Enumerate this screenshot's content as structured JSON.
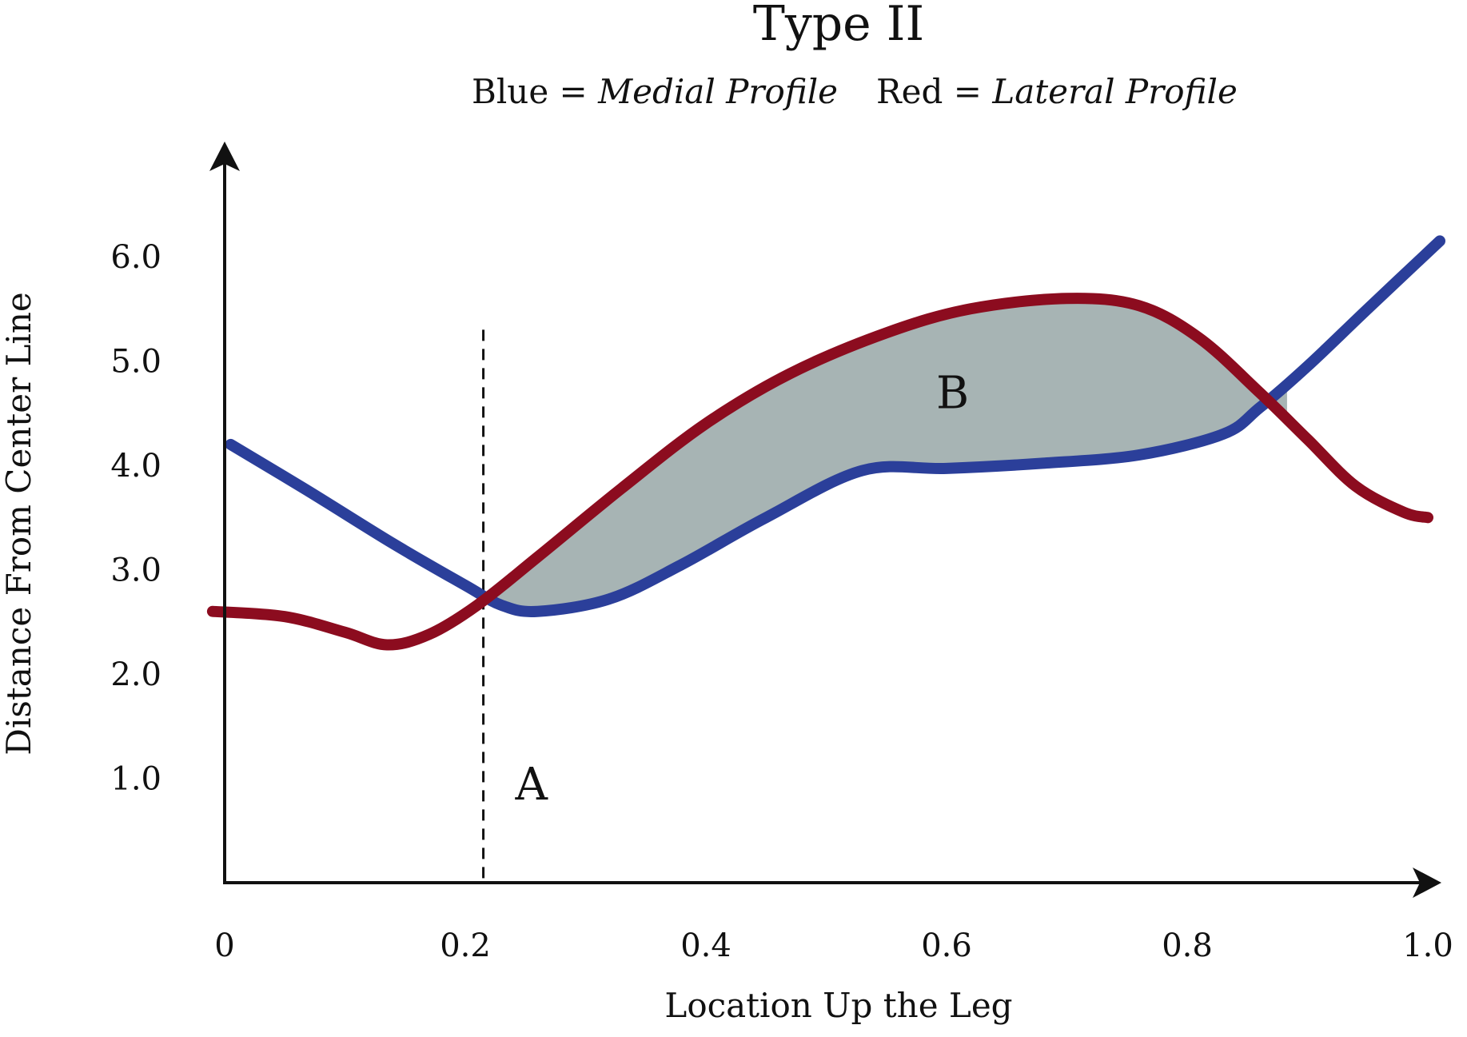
{
  "chart_data": {
    "type": "line",
    "title": "Type II",
    "legend": {
      "placement": "top-center",
      "entries": [
        {
          "prefix": "Blue = ",
          "name": "Medial Profile",
          "color": "#2b3f9a"
        },
        {
          "prefix": "Red = ",
          "name": "Lateral Profile",
          "color": "#8c0c1f"
        }
      ]
    },
    "xlabel": "Location Up the Leg",
    "ylabel": "Distance From Center Line",
    "xlim": [
      0,
      1.0
    ],
    "ylim": [
      0,
      6.0
    ],
    "x_ticks": [
      {
        "value": 0,
        "label": "0"
      },
      {
        "value": 0.2,
        "label": "0.2"
      },
      {
        "value": 0.4,
        "label": "0.4"
      },
      {
        "value": 0.6,
        "label": "0.6"
      },
      {
        "value": 0.8,
        "label": "0.8"
      },
      {
        "value": 1.0,
        "label": "1.0"
      }
    ],
    "y_ticks": [
      {
        "value": 1.0,
        "label": "1.0"
      },
      {
        "value": 2.0,
        "label": "2.0"
      },
      {
        "value": 3.0,
        "label": "3.0"
      },
      {
        "value": 4.0,
        "label": "4.0"
      },
      {
        "value": 5.0,
        "label": "5.0"
      },
      {
        "value": 6.0,
        "label": "6.0"
      }
    ],
    "grid": false,
    "series": [
      {
        "name": "Medial Profile",
        "color": "#2b3f9a",
        "x": [
          0.005,
          0.07,
          0.14,
          0.2,
          0.23,
          0.26,
          0.32,
          0.38,
          0.45,
          0.53,
          0.6,
          0.68,
          0.76,
          0.83,
          0.86,
          0.9,
          0.95,
          1.01
        ],
        "y": [
          4.2,
          3.75,
          3.25,
          2.85,
          2.66,
          2.6,
          2.72,
          3.05,
          3.5,
          3.95,
          3.97,
          4.02,
          4.1,
          4.3,
          4.55,
          4.95,
          5.5,
          6.15
        ]
      },
      {
        "name": "Lateral Profile",
        "color": "#8c0c1f",
        "x": [
          -0.01,
          0.05,
          0.1,
          0.135,
          0.17,
          0.21,
          0.26,
          0.33,
          0.4,
          0.47,
          0.55,
          0.62,
          0.7,
          0.76,
          0.81,
          0.86,
          0.9,
          0.94,
          0.98,
          1.0
        ],
        "y": [
          2.6,
          2.55,
          2.4,
          2.28,
          2.38,
          2.66,
          3.12,
          3.78,
          4.4,
          4.88,
          5.27,
          5.5,
          5.6,
          5.53,
          5.22,
          4.7,
          4.25,
          3.8,
          3.55,
          3.5
        ]
      }
    ],
    "annotations": [
      {
        "label": "A",
        "type": "vertical-dashed-line",
        "x": 0.215,
        "y_from": 0,
        "y_to": 5.3,
        "label_x": 0.255,
        "label_y": 0.95
      },
      {
        "label": "B",
        "type": "shaded-region",
        "between": [
          "Lateral Profile",
          "Medial Profile"
        ],
        "x_range": [
          0.215,
          0.883
        ],
        "fill": "#a7b4b4",
        "label_x": 0.605,
        "label_y": 4.7
      }
    ]
  }
}
